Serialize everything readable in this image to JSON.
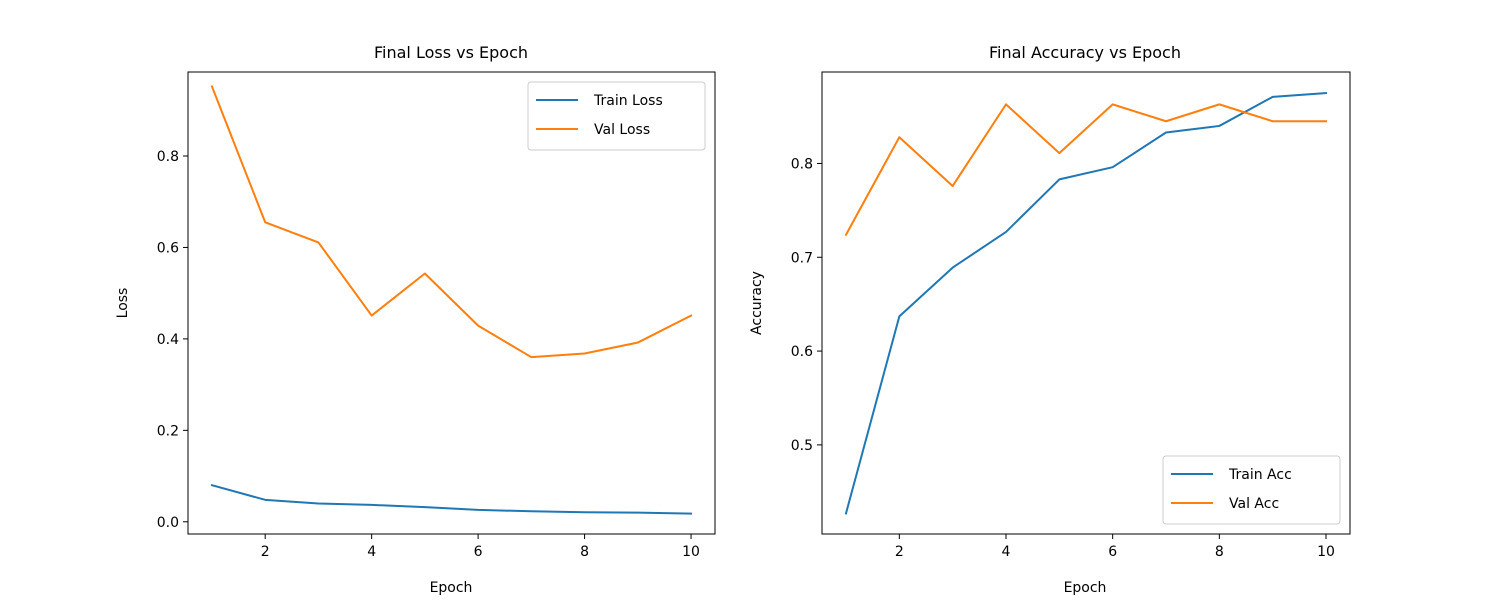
{
  "colors": {
    "train": "#1f77b4",
    "val": "#ff7f0e",
    "axis": "#000000",
    "legend_border": "#cccccc",
    "background": "#ffffff"
  },
  "chart_data": [
    {
      "type": "line",
      "title": "Final Loss vs Epoch",
      "xlabel": "Epoch",
      "ylabel": "Loss",
      "x": [
        1,
        2,
        3,
        4,
        5,
        6,
        7,
        8,
        9,
        10
      ],
      "xlim": [
        0.55,
        10.45
      ],
      "ylim": [
        -0.0267,
        0.9837
      ],
      "xticks": [
        2,
        4,
        6,
        8,
        10
      ],
      "xtick_labels": [
        "2",
        "4",
        "6",
        "8",
        "10"
      ],
      "yticks": [
        0.0,
        0.2,
        0.4,
        0.6,
        0.8
      ],
      "ytick_labels": [
        "0.0",
        "0.2",
        "0.4",
        "0.6",
        "0.8"
      ],
      "grid": false,
      "legend_position": "top-right",
      "series": [
        {
          "name": "Train Loss",
          "color": "#1f77b4",
          "values": [
            0.08,
            0.048,
            0.04,
            0.037,
            0.032,
            0.026,
            0.023,
            0.021,
            0.02,
            0.018
          ]
        },
        {
          "name": "Val Loss",
          "color": "#ff7f0e",
          "values": [
            0.952,
            0.655,
            0.611,
            0.451,
            0.543,
            0.429,
            0.36,
            0.368,
            0.392,
            0.451
          ]
        }
      ]
    },
    {
      "type": "line",
      "title": "Final Accuracy vs Epoch",
      "xlabel": "Epoch",
      "ylabel": "Accuracy",
      "x": [
        1,
        2,
        3,
        4,
        5,
        6,
        7,
        8,
        9,
        10
      ],
      "xlim": [
        0.55,
        10.45
      ],
      "ylim": [
        0.405,
        0.8975
      ],
      "xticks": [
        2,
        4,
        6,
        8,
        10
      ],
      "xtick_labels": [
        "2",
        "4",
        "6",
        "8",
        "10"
      ],
      "yticks": [
        0.5,
        0.6,
        0.7,
        0.8
      ],
      "ytick_labels": [
        "0.5",
        "0.6",
        "0.7",
        "0.8"
      ],
      "grid": false,
      "legend_position": "bottom-right",
      "series": [
        {
          "name": "Train Acc",
          "color": "#1f77b4",
          "values": [
            0.427,
            0.637,
            0.689,
            0.727,
            0.783,
            0.796,
            0.833,
            0.84,
            0.871,
            0.875
          ]
        },
        {
          "name": "Val Acc",
          "color": "#ff7f0e",
          "values": [
            0.724,
            0.828,
            0.776,
            0.863,
            0.811,
            0.863,
            0.845,
            0.863,
            0.845,
            0.845
          ]
        }
      ]
    }
  ]
}
